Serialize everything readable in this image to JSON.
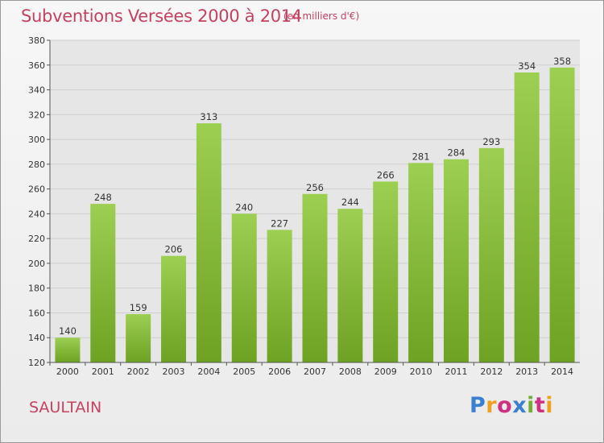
{
  "header": {
    "title": "Subventions Versées 2000 à 2014",
    "unit": "(en milliers d'€)"
  },
  "footer": {
    "commune": "SAULTAIN",
    "logo_text": "Proxiti",
    "logo_colors": [
      "#3a7fd0",
      "#f0a020",
      "#d03080",
      "#3a7fd0",
      "#70b030",
      "#d03080",
      "#f0a020"
    ]
  },
  "colors": {
    "accent": "#c8415f",
    "bar_light": "#9ccf52",
    "bar_dark": "#6ea222"
  },
  "chart_data": {
    "type": "bar",
    "title": "Subventions Versées 2000 à 2014",
    "subtitle": "(en milliers d'€)",
    "xlabel": "",
    "ylabel": "",
    "categories": [
      "2000",
      "2001",
      "2002",
      "2003",
      "2004",
      "2005",
      "2006",
      "2007",
      "2008",
      "2009",
      "2010",
      "2011",
      "2012",
      "2013",
      "2014"
    ],
    "values": [
      140,
      248,
      159,
      206,
      313,
      240,
      227,
      256,
      244,
      266,
      281,
      284,
      293,
      354,
      358
    ],
    "ylim": [
      120,
      380
    ],
    "yticks": [
      120,
      140,
      160,
      180,
      200,
      220,
      240,
      260,
      280,
      300,
      320,
      340,
      360,
      380
    ],
    "grid": true,
    "data_labels": true
  }
}
